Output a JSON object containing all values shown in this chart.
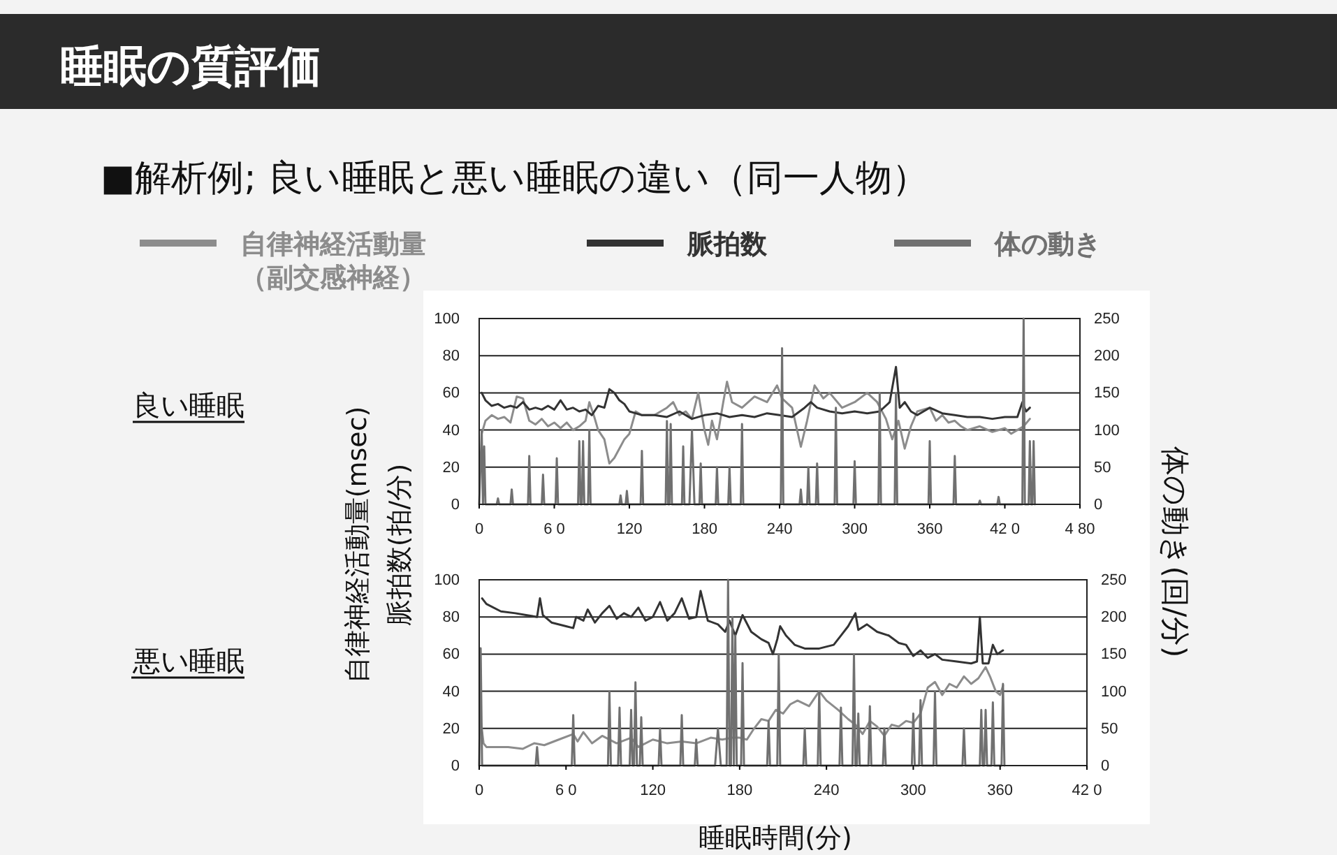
{
  "chart_data": [
    {
      "type": "line",
      "title": "睡眠の質評価",
      "subtitle": "■解析例;  良い睡眠と悪い睡眠の違い（同一人物）",
      "annotations": [
        "良い睡眠"
      ],
      "ylabel": "自律神経活動量(msec)\n脈拍数(拍/分)",
      "y2label": "体の動き(回/分)",
      "xlim": [
        0,
        480
      ],
      "xticks": [
        0,
        {
          "value": 60,
          "label": "6 0"
        },
        120,
        180,
        240,
        300,
        360,
        {
          "value": 420,
          "label": "42 0"
        },
        {
          "value": 480,
          "label": "4 80"
        }
      ],
      "ylim": [
        0,
        100
      ],
      "yticks": [
        0,
        20,
        40,
        60,
        80,
        100
      ],
      "y2lim": [
        0,
        250
      ],
      "y2ticks": [
        0,
        50,
        100,
        150,
        200,
        250
      ],
      "grid": "y",
      "legend": "top",
      "series": [
        {
          "name": "自律神経活動量（副交感神経）",
          "color": "#8c8c8c",
          "x": [
            2,
            5,
            10,
            15,
            20,
            25,
            30,
            35,
            40,
            45,
            50,
            55,
            60,
            65,
            70,
            75,
            80,
            85,
            88,
            92,
            95,
            100,
            104,
            108,
            112,
            116,
            120,
            125,
            130,
            140,
            150,
            155,
            160,
            165,
            170,
            175,
            180,
            183,
            186,
            190,
            195,
            198,
            202,
            210,
            220,
            230,
            238,
            242,
            250,
            254,
            257,
            262,
            268,
            275,
            280,
            290,
            300,
            310,
            318,
            325,
            330,
            335,
            340,
            345,
            350,
            360,
            365,
            370,
            375,
            380,
            385,
            390,
            400,
            410,
            420,
            425,
            430,
            435,
            440
          ],
          "values": [
            38,
            45,
            48,
            46,
            47,
            44,
            58,
            57,
            45,
            43,
            46,
            42,
            44,
            41,
            44,
            40,
            42,
            45,
            55,
            47,
            40,
            35,
            22,
            25,
            30,
            35,
            38,
            50,
            48,
            48,
            52,
            55,
            48,
            50,
            46,
            60,
            40,
            32,
            45,
            35,
            55,
            66,
            55,
            52,
            58,
            55,
            64,
            57,
            52,
            40,
            31,
            45,
            64,
            57,
            60,
            52,
            55,
            60,
            55,
            46,
            35,
            45,
            30,
            42,
            50,
            52,
            45,
            48,
            44,
            45,
            42,
            40,
            42,
            39,
            41,
            38,
            40,
            42,
            46
          ]
        },
        {
          "name": "脈拍数",
          "color": "#333333",
          "x": [
            2,
            5,
            10,
            15,
            20,
            25,
            30,
            35,
            40,
            45,
            50,
            55,
            60,
            65,
            70,
            75,
            80,
            85,
            90,
            95,
            100,
            104,
            108,
            112,
            116,
            120,
            125,
            130,
            140,
            150,
            160,
            170,
            180,
            190,
            200,
            210,
            220,
            230,
            240,
            250,
            260,
            265,
            270,
            280,
            290,
            300,
            310,
            320,
            328,
            333,
            336,
            340,
            345,
            350,
            360,
            370,
            380,
            390,
            400,
            410,
            420,
            430,
            434,
            437,
            440
          ],
          "values": [
            60,
            56,
            53,
            54,
            52,
            53,
            52,
            55,
            51,
            52,
            51,
            53,
            51,
            56,
            51,
            52,
            50,
            51,
            48,
            53,
            52,
            62,
            60,
            56,
            54,
            50,
            49,
            48,
            48,
            47,
            50,
            46,
            48,
            49,
            47,
            48,
            47,
            49,
            48,
            47,
            52,
            55,
            52,
            50,
            49,
            50,
            49,
            50,
            55,
            74,
            52,
            55,
            50,
            48,
            52,
            49,
            48,
            47,
            47,
            46,
            47,
            47,
            55,
            50,
            52
          ]
        },
        {
          "name": "体の動き",
          "color": "#707070",
          "axis": "y2",
          "x": [
            0,
            2,
            3,
            4,
            5,
            14,
            15,
            16,
            25,
            26,
            27,
            39,
            40,
            41,
            50,
            51,
            52,
            61,
            62,
            63,
            79,
            80,
            81,
            82,
            83,
            84,
            87,
            88,
            89,
            112,
            113,
            114,
            117,
            118,
            119,
            129,
            130,
            131,
            149,
            150,
            151,
            152,
            153,
            154,
            162,
            163,
            164,
            168,
            170,
            172,
            176,
            177,
            178,
            189,
            190,
            191,
            199,
            200,
            201,
            209,
            210,
            211,
            241,
            242,
            243,
            256,
            257,
            258,
            262,
            263,
            264,
            269,
            270,
            271,
            284,
            285,
            286,
            299,
            300,
            301,
            319,
            320,
            321,
            332,
            333,
            334,
            359,
            360,
            361,
            379,
            380,
            381,
            399,
            400,
            401,
            414,
            415,
            416,
            434,
            435,
            436,
            439,
            440,
            441,
            442,
            443,
            444
          ],
          "values": [
            0,
            100,
            0,
            78,
            0,
            0,
            8,
            0,
            0,
            20,
            0,
            0,
            65,
            0,
            0,
            40,
            0,
            0,
            62,
            0,
            0,
            85,
            0,
            0,
            85,
            0,
            0,
            100,
            0,
            0,
            12,
            0,
            0,
            18,
            0,
            0,
            72,
            0,
            0,
            112,
            0,
            0,
            108,
            0,
            0,
            78,
            0,
            0,
            100,
            0,
            0,
            55,
            0,
            0,
            50,
            0,
            0,
            50,
            0,
            0,
            108,
            0,
            0,
            210,
            0,
            0,
            20,
            0,
            0,
            50,
            0,
            0,
            55,
            0,
            0,
            130,
            0,
            0,
            58,
            0,
            0,
            150,
            0,
            0,
            150,
            0,
            0,
            85,
            0,
            0,
            65,
            0,
            0,
            5,
            0,
            0,
            10,
            0,
            0,
            250,
            0,
            0,
            85,
            0,
            0,
            85,
            0
          ]
        }
      ]
    },
    {
      "type": "line",
      "annotations": [
        "悪い睡眠"
      ],
      "xlabel": "睡眠時間(分)",
      "xlim": [
        0,
        420
      ],
      "xticks": [
        0,
        {
          "value": 60,
          "label": "6 0"
        },
        120,
        180,
        240,
        300,
        360,
        {
          "value": 420,
          "label": "42 0"
        }
      ],
      "ylim": [
        0,
        100
      ],
      "yticks": [
        0,
        20,
        40,
        60,
        80,
        100
      ],
      "y2lim": [
        0,
        250
      ],
      "y2ticks": [
        0,
        50,
        100,
        150,
        200,
        250
      ],
      "grid": "y",
      "series": [
        {
          "color": "#8c8c8c",
          "x": [
            1,
            3,
            5,
            20,
            30,
            38,
            45,
            55,
            65,
            68,
            72,
            78,
            85,
            95,
            105,
            110,
            120,
            130,
            140,
            150,
            160,
            168,
            175,
            180,
            185,
            190,
            195,
            200,
            205,
            210,
            215,
            220,
            228,
            235,
            240,
            248,
            255,
            260,
            265,
            270,
            275,
            280,
            285,
            290,
            295,
            300,
            305,
            310,
            315,
            320,
            325,
            330,
            335,
            340,
            345,
            350,
            353,
            357,
            360,
            362
          ],
          "values": [
            25,
            12,
            10,
            10,
            9,
            12,
            11,
            14,
            17,
            13,
            18,
            12,
            16,
            12,
            15,
            10,
            14,
            12,
            13,
            12,
            15,
            14,
            15,
            15,
            14,
            20,
            25,
            24,
            30,
            28,
            33,
            35,
            32,
            40,
            35,
            30,
            25,
            22,
            17,
            24,
            21,
            16,
            22,
            21,
            24,
            23,
            28,
            42,
            45,
            38,
            44,
            42,
            48,
            44,
            47,
            53,
            48,
            40,
            38,
            43
          ]
        },
        {
          "color": "#333333",
          "x": [
            2,
            5,
            15,
            25,
            40,
            42,
            44,
            50,
            60,
            65,
            67,
            72,
            75,
            80,
            85,
            90,
            95,
            100,
            105,
            110,
            115,
            120,
            125,
            130,
            135,
            140,
            145,
            150,
            153,
            158,
            165,
            170,
            173,
            177,
            182,
            188,
            195,
            200,
            203,
            206,
            208,
            212,
            218,
            225,
            235,
            245,
            250,
            255,
            260,
            262,
            268,
            275,
            283,
            290,
            295,
            300,
            305,
            310,
            315,
            320,
            330,
            340,
            344,
            346,
            348,
            352,
            355,
            358,
            362
          ],
          "values": [
            90,
            87,
            83,
            82,
            80,
            90,
            81,
            77,
            75,
            74,
            80,
            78,
            84,
            77,
            82,
            86,
            79,
            82,
            80,
            85,
            78,
            80,
            88,
            78,
            82,
            90,
            79,
            80,
            94,
            78,
            76,
            72,
            78,
            70,
            81,
            72,
            68,
            66,
            60,
            68,
            75,
            70,
            65,
            63,
            63,
            65,
            70,
            75,
            82,
            73,
            76,
            72,
            70,
            66,
            65,
            59,
            62,
            58,
            60,
            57,
            56,
            55,
            56,
            80,
            55,
            55,
            65,
            60,
            62
          ]
        },
        {
          "color": "#707070",
          "axis": "y2",
          "x": [
            0,
            1,
            2,
            39,
            40,
            41,
            64,
            65,
            66,
            89,
            90,
            91,
            96,
            97,
            98,
            104,
            105,
            106,
            107,
            108,
            109,
            111,
            112,
            113,
            124,
            125,
            126,
            139,
            140,
            141,
            149,
            150,
            151,
            163,
            165,
            167,
            171,
            172,
            173,
            174,
            175,
            176,
            177,
            178,
            181,
            182,
            183,
            199,
            200,
            201,
            206,
            207,
            208,
            224,
            225,
            226,
            234,
            235,
            236,
            249,
            250,
            251,
            258,
            259,
            260,
            261,
            262,
            263,
            269,
            270,
            271,
            279,
            280,
            281,
            299,
            300,
            301,
            304,
            305,
            306,
            314,
            315,
            316,
            334,
            335,
            336,
            346,
            347,
            348,
            349,
            350,
            351,
            354,
            355,
            356,
            361,
            362,
            363
          ],
          "values": [
            0,
            158,
            0,
            0,
            25,
            0,
            0,
            68,
            0,
            0,
            100,
            0,
            0,
            78,
            0,
            0,
            75,
            0,
            0,
            112,
            0,
            0,
            65,
            0,
            0,
            50,
            0,
            0,
            68,
            0,
            0,
            35,
            0,
            0,
            50,
            0,
            0,
            250,
            0,
            0,
            200,
            0,
            175,
            0,
            0,
            138,
            0,
            0,
            60,
            0,
            0,
            150,
            0,
            0,
            50,
            0,
            0,
            100,
            0,
            0,
            78,
            0,
            0,
            150,
            0,
            0,
            70,
            0,
            0,
            80,
            0,
            0,
            50,
            0,
            0,
            70,
            0,
            0,
            88,
            0,
            0,
            100,
            0,
            0,
            50,
            0,
            0,
            75,
            0,
            0,
            75,
            0,
            0,
            85,
            0,
            0,
            110,
            0
          ]
        }
      ]
    }
  ]
}
